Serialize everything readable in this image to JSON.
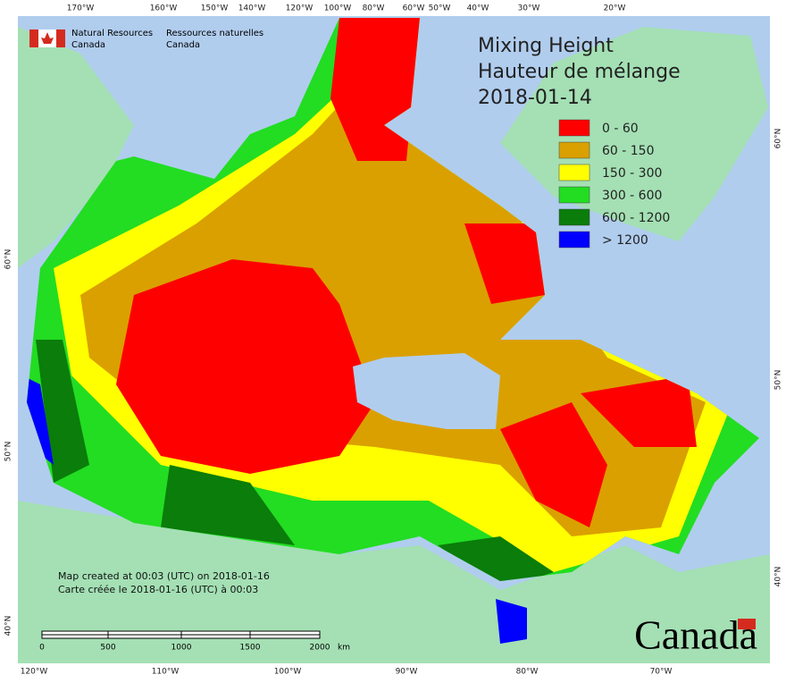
{
  "agency": {
    "en_line1": "Natural Resources",
    "en_line2": "Canada",
    "fr_line1": "Ressources naturelles",
    "fr_line2": "Canada"
  },
  "title": {
    "line1": "Mixing Height",
    "line2": "Hauteur de mélange",
    "date": "2018-01-14"
  },
  "legend": [
    {
      "label": "0 - 60",
      "color": "#ff0000"
    },
    {
      "label": "60 - 150",
      "color": "#daa000"
    },
    {
      "label": "150 - 300",
      "color": "#ffff00"
    },
    {
      "label": "300 - 600",
      "color": "#22dd22"
    },
    {
      "label": "600 - 1200",
      "color": "#0a7d0a"
    },
    {
      "label": "> 1200",
      "color": "#0000ff"
    }
  ],
  "top_longitudes": [
    "170°W",
    "160°W",
    "150°W",
    "140°W",
    "120°W",
    "100°W",
    "80°W",
    "60°W",
    "50°W",
    "40°W",
    "30°W",
    "20°W"
  ],
  "bottom_longitudes": [
    "120°W",
    "110°W",
    "100°W",
    "90°W",
    "80°W",
    "70°W"
  ],
  "left_latitudes": [
    "60°N",
    "50°N",
    "40°N"
  ],
  "right_latitudes": [
    "60°N",
    "50°N",
    "40°N"
  ],
  "footer": {
    "line1": "Map created at 00:03 (UTC) on 2018-01-16",
    "line2": "Carte créée le 2018-01-16 (UTC) à 00:03"
  },
  "scale_bar": {
    "labels": [
      "0",
      "500",
      "1000",
      "1500",
      "2000"
    ],
    "unit": "km"
  },
  "wordmark": "Canada"
}
